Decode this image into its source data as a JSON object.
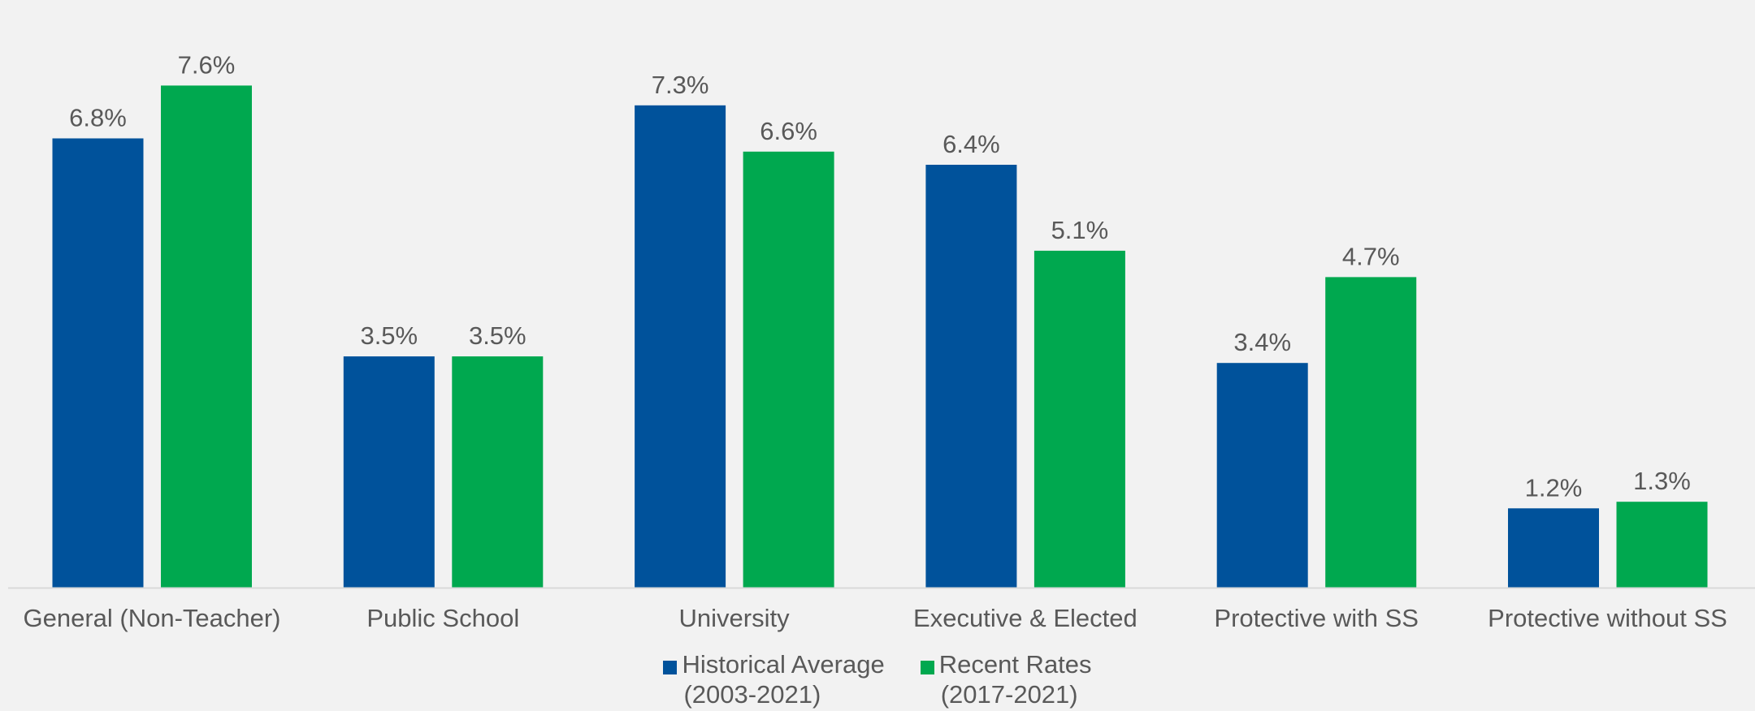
{
  "chart_data": {
    "type": "bar",
    "categories": [
      "General (Non-Teacher)",
      "Public School",
      "University",
      "Executive & Elected",
      "Protective with SS",
      "Protective without SS"
    ],
    "series": [
      {
        "name": "Historical Average (2003-2021)",
        "legend_lines": [
          "Historical Average",
          "(2003-2021)"
        ],
        "color": "#00529b",
        "values": [
          6.8,
          3.5,
          7.3,
          6.4,
          3.4,
          1.2
        ],
        "labels": [
          "6.8%",
          "3.5%",
          "7.3%",
          "6.4%",
          "3.4%",
          "1.2%"
        ]
      },
      {
        "name": "Recent Rates (2017-2021)",
        "legend_lines": [
          "Recent Rates",
          "(2017-2021)"
        ],
        "color": "#00a84f",
        "values": [
          7.6,
          3.5,
          6.6,
          5.1,
          4.7,
          1.3
        ],
        "labels": [
          "7.6%",
          "3.5%",
          "6.6%",
          "5.1%",
          "4.7%",
          "1.3%"
        ]
      }
    ],
    "title": "",
    "xlabel": "",
    "ylabel": "",
    "ylim": [
      0,
      8
    ],
    "grid": false,
    "legend": "bottom",
    "axis_color": "#d9d9d9"
  }
}
